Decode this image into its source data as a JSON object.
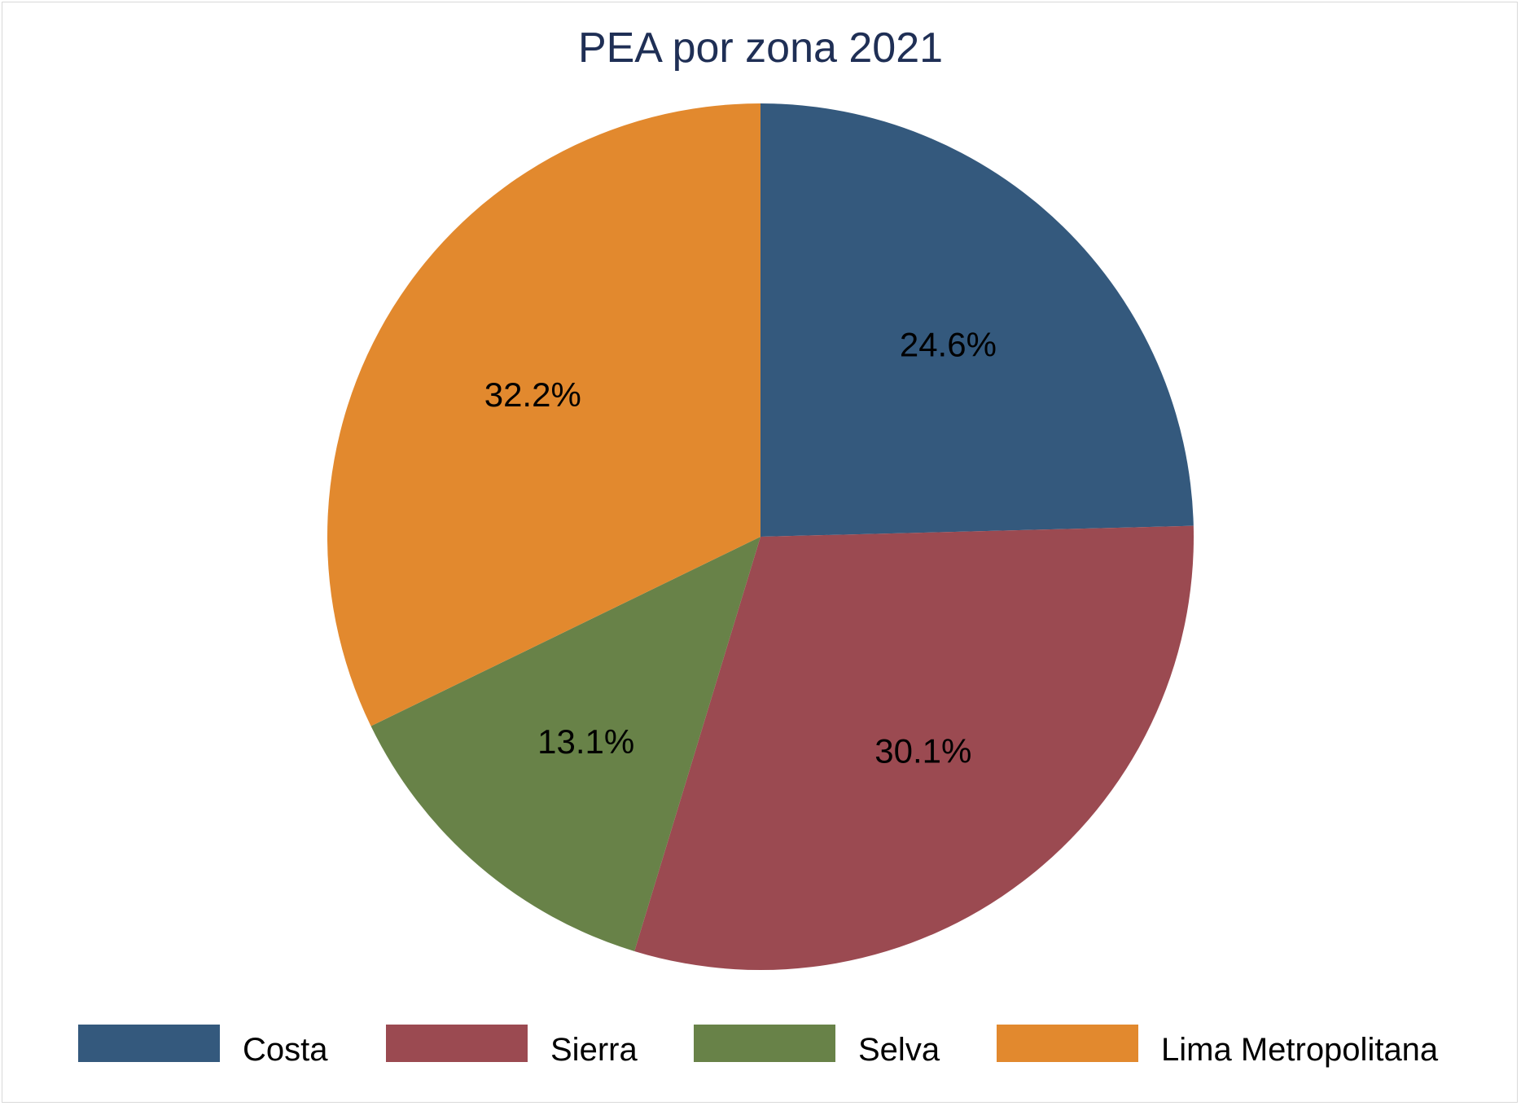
{
  "chart_data": {
    "type": "pie",
    "title": "PEA por zona 2021",
    "slices": [
      {
        "name": "Costa",
        "value": 24.6,
        "label": "24.6%",
        "color": "#34597d"
      },
      {
        "name": "Sierra",
        "value": 30.1,
        "label": "30.1%",
        "color": "#9b4a51"
      },
      {
        "name": "Selva",
        "value": 13.1,
        "label": "13.1%",
        "color": "#688248"
      },
      {
        "name": "Lima Metropolitana",
        "value": 32.2,
        "label": "32.2%",
        "color": "#e2892e"
      }
    ],
    "start_angle": "12 o'clock",
    "direction": "clockwise",
    "legend_position": "bottom"
  }
}
